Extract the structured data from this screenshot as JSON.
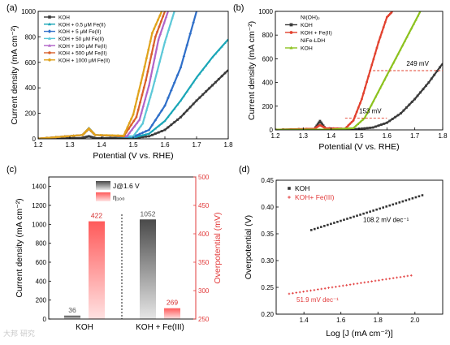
{
  "watermark": "大邦 研究",
  "chart_data": [
    {
      "panel": "(a)",
      "type": "line",
      "xlabel": "Potential (V vs. RHE)",
      "ylabel": "Current density (mA cm⁻²)",
      "xlim": [
        1.2,
        1.8
      ],
      "ylim": [
        0,
        1000
      ],
      "xticks": [
        "1.2",
        "1.3",
        "1.4",
        "1.5",
        "1.6",
        "1.7",
        "1.8"
      ],
      "yticks": [
        "0",
        "200",
        "400",
        "600",
        "800",
        "1000"
      ],
      "legend_position": "top-left",
      "series": [
        {
          "name": "KOH",
          "color": "#3a3a3a",
          "marker": "square",
          "x": [
            1.2,
            1.34,
            1.36,
            1.38,
            1.5,
            1.55,
            1.6,
            1.65,
            1.7,
            1.75,
            1.8
          ],
          "y": [
            2,
            8,
            20,
            6,
            6,
            20,
            70,
            170,
            300,
            420,
            540
          ]
        },
        {
          "name": "KOH + 0.5 μM Fe(II)",
          "color": "#1aa6b7",
          "marker": "triangle",
          "x": [
            1.2,
            1.34,
            1.36,
            1.38,
            1.5,
            1.55,
            1.6,
            1.65,
            1.7,
            1.75,
            1.8
          ],
          "y": [
            2,
            30,
            85,
            30,
            10,
            40,
            140,
            300,
            480,
            640,
            780
          ]
        },
        {
          "name": "KOH + 5 μM Fe(II)",
          "color": "#2f6fc9",
          "marker": "diamond",
          "x": [
            1.2,
            1.34,
            1.36,
            1.38,
            1.5,
            1.55,
            1.6,
            1.65,
            1.7
          ],
          "y": [
            2,
            30,
            80,
            30,
            15,
            70,
            260,
            560,
            1000
          ]
        },
        {
          "name": "KOH + 50 μM Fe(II)",
          "color": "#5cc8d8",
          "marker": "triangle",
          "x": [
            1.2,
            1.34,
            1.36,
            1.38,
            1.5,
            1.53,
            1.56,
            1.6,
            1.63
          ],
          "y": [
            2,
            30,
            80,
            30,
            20,
            120,
            380,
            760,
            1000
          ]
        },
        {
          "name": "KOH + 100 μM Fe(II)",
          "color": "#b264c8",
          "marker": "triangle",
          "x": [
            1.2,
            1.34,
            1.36,
            1.38,
            1.48,
            1.52,
            1.55,
            1.58,
            1.61
          ],
          "y": [
            2,
            30,
            80,
            30,
            20,
            150,
            420,
            780,
            1000
          ]
        },
        {
          "name": "KOH + 500 μM Fe(II)",
          "color": "#d9602b",
          "marker": "circle",
          "x": [
            1.2,
            1.34,
            1.36,
            1.38,
            1.47,
            1.51,
            1.54,
            1.57,
            1.6
          ],
          "y": [
            2,
            30,
            80,
            30,
            20,
            170,
            460,
            800,
            1000
          ]
        },
        {
          "name": "KOH + 1000 μM Fe(II)",
          "color": "#e0a31c",
          "marker": "circle",
          "x": [
            1.2,
            1.34,
            1.36,
            1.38,
            1.47,
            1.5,
            1.53,
            1.56,
            1.59
          ],
          "y": [
            2,
            30,
            80,
            30,
            25,
            190,
            500,
            830,
            1000
          ]
        }
      ]
    },
    {
      "panel": "(b)",
      "type": "line",
      "xlabel": "Potential (V vs. RHE)",
      "ylabel": "Current density (mA cm⁻²)",
      "xlim": [
        1.2,
        1.8
      ],
      "ylim": [
        0,
        1000
      ],
      "xticks": [
        "1.2",
        "1.3",
        "1.4",
        "1.5",
        "1.6",
        "1.7",
        "1.8"
      ],
      "yticks": [
        "0",
        "200",
        "400",
        "600",
        "800",
        "1000"
      ],
      "legend_groups": [
        "Ni(OH)₂",
        "NiFe-LDH"
      ],
      "legend_position": "top-left",
      "series": [
        {
          "name": "KOH",
          "group": "Ni(OH)₂",
          "color": "#3a3a3a",
          "marker": "square",
          "x": [
            1.2,
            1.34,
            1.36,
            1.38,
            1.5,
            1.55,
            1.6,
            1.65,
            1.7,
            1.75,
            1.8
          ],
          "y": [
            2,
            8,
            75,
            10,
            8,
            20,
            60,
            140,
            260,
            400,
            560
          ]
        },
        {
          "name": "KOH + Fe(II)",
          "group": "Ni(OH)₂",
          "color": "#e2412e",
          "marker": "circle",
          "x": [
            1.2,
            1.34,
            1.36,
            1.38,
            1.45,
            1.48,
            1.51,
            1.54,
            1.57,
            1.6,
            1.62
          ],
          "y": [
            2,
            10,
            40,
            15,
            10,
            80,
            260,
            500,
            740,
            950,
            1000
          ]
        },
        {
          "name": "KOH",
          "group": "NiFe-LDH",
          "color": "#8cc21e",
          "marker": "triangle",
          "x": [
            1.2,
            1.4,
            1.48,
            1.52,
            1.56,
            1.6,
            1.64,
            1.68,
            1.72
          ],
          "y": [
            2,
            3,
            15,
            100,
            280,
            460,
            640,
            820,
            1000
          ]
        }
      ],
      "annotations": [
        "249 mV",
        "153 mV"
      ]
    },
    {
      "panel": "(c)",
      "type": "bar",
      "categories": [
        "KOH",
        "KOH + Fe(III)"
      ],
      "ylabel_left": "Current density (mA cm⁻²)",
      "ylabel_right": "Overpotential (mV)",
      "ylim_left": [
        0,
        1500
      ],
      "ylim_right": [
        250,
        500
      ],
      "yticks_left": [
        "0",
        "200",
        "400",
        "600",
        "800",
        "1000",
        "1200",
        "1400"
      ],
      "yticks_right": [
        "250",
        "300",
        "350",
        "400",
        "450",
        "500"
      ],
      "legend": [
        "J@1.6 V",
        "η₁₀₀"
      ],
      "series": [
        {
          "name": "J@1.6 V",
          "axis": "left",
          "color": "#555555",
          "values": [
            36,
            1052
          ],
          "labels": [
            "36",
            "1052"
          ]
        },
        {
          "name": "η₁₀₀",
          "axis": "right",
          "color": "#f04e4e",
          "values": [
            422,
            269
          ],
          "labels": [
            "422",
            "269"
          ]
        }
      ]
    },
    {
      "panel": "(d)",
      "type": "scatter",
      "xlabel": "Log [J (mA cm⁻²)]",
      "ylabel": "Overpotential (V)",
      "xlim": [
        1.25,
        2.15
      ],
      "ylim": [
        0.2,
        0.45
      ],
      "xticks": [
        "1.4",
        "1.6",
        "1.8",
        "2.0"
      ],
      "yticks": [
        "0.20",
        "0.25",
        "0.30",
        "0.35",
        "0.40",
        "0.45"
      ],
      "legend_position": "top-left",
      "series": [
        {
          "name": "KOH",
          "color": "#333333",
          "marker": "square",
          "x0": 1.44,
          "x1": 2.04,
          "slope": 0.1082,
          "y0": 0.357
        },
        {
          "name": "KOH+ Fe(III)",
          "color": "#e23b3b",
          "marker": "cross",
          "x0": 1.32,
          "x1": 1.98,
          "slope": 0.0519,
          "y0": 0.238
        }
      ],
      "annotations": [
        "108.2 mV dec⁻¹",
        "51.9 mV dec⁻¹"
      ]
    }
  ]
}
